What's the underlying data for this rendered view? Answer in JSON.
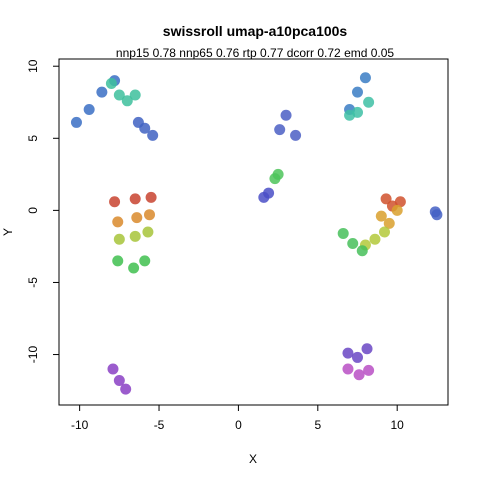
{
  "chart_data": {
    "type": "scatter",
    "title": "swissroll umap-a10pca100s",
    "subtitle": "nnp15 0.78 nnp65 0.76 rtp 0.77 dcorr 0.72 emd 0.05",
    "xlabel": "X",
    "ylabel": "Y",
    "xlim": [
      -11.3,
      13.2
    ],
    "ylim": [
      -13.5,
      10.5
    ],
    "xticks": [
      -10,
      -5,
      0,
      5,
      10
    ],
    "yticks": [
      10,
      5,
      0,
      -5,
      -10
    ],
    "xtick_labels": [
      "-10",
      "-5",
      "0",
      "5",
      "10"
    ],
    "ytick_labels": [
      "10",
      "5",
      "0",
      "-5",
      "-10"
    ],
    "grid": false,
    "legend": "none",
    "color_scale": "rainbow (red→yellow→green→blue→purple)",
    "clusters": [
      {
        "name": "",
        "x": [
          -10.2,
          -9.4,
          -8.6,
          -7.8
        ],
        "y": [
          6.1,
          7.0,
          8.2,
          9.0
        ],
        "color": "#3a6fc4"
      },
      {
        "name": "",
        "x": [
          -8.0,
          -7.5,
          -7.0,
          -6.5
        ],
        "y": [
          8.8,
          8.0,
          7.6,
          8.0
        ],
        "color": "#3dbf9c"
      },
      {
        "name": "",
        "x": [
          -6.3,
          -5.9,
          -5.4
        ],
        "y": [
          6.1,
          5.7,
          5.2
        ],
        "color": "#4061c2"
      },
      {
        "name": "",
        "x": [
          -7.8,
          -6.5,
          -5.5
        ],
        "y": [
          0.6,
          0.8,
          0.9
        ],
        "color": "#c8432f"
      },
      {
        "name": "",
        "x": [
          -7.6,
          -6.4,
          -5.6
        ],
        "y": [
          -0.8,
          -0.5,
          -0.3
        ],
        "color": "#d98a2b"
      },
      {
        "name": "",
        "x": [
          -7.5,
          -6.5,
          -5.7
        ],
        "y": [
          -2.0,
          -1.8,
          -1.5
        ],
        "color": "#a7c43a"
      },
      {
        "name": "",
        "x": [
          -7.6,
          -6.6,
          -5.9
        ],
        "y": [
          -3.5,
          -4.0,
          -3.5
        ],
        "color": "#3fbf4f"
      },
      {
        "name": "",
        "x": [
          -7.9,
          -7.5,
          -7.1
        ],
        "y": [
          -11.0,
          -11.8,
          -12.4
        ],
        "color": "#8a3fc4"
      },
      {
        "name": "",
        "x": [
          1.6,
          1.9
        ],
        "y": [
          0.9,
          1.2
        ],
        "color": "#4a4fc7"
      },
      {
        "name": "",
        "x": [
          2.3,
          2.5
        ],
        "y": [
          2.2,
          2.5
        ],
        "color": "#4ec45b"
      },
      {
        "name": "",
        "x": [
          2.6,
          3.0,
          3.6
        ],
        "y": [
          5.6,
          6.6,
          5.2
        ],
        "color": "#4b5fc4"
      },
      {
        "name": "",
        "x": [
          7.0,
          7.5,
          8.0
        ],
        "y": [
          7.0,
          8.2,
          9.2
        ],
        "color": "#3a7dc4"
      },
      {
        "name": "",
        "x": [
          7.0,
          7.5,
          8.2
        ],
        "y": [
          6.6,
          6.8,
          7.5
        ],
        "color": "#3ec0a4"
      },
      {
        "name": "",
        "x": [
          9.3,
          9.7,
          10.2
        ],
        "y": [
          0.8,
          0.3,
          0.6
        ],
        "color": "#d0512d"
      },
      {
        "name": "",
        "x": [
          9.0,
          9.5,
          10.0
        ],
        "y": [
          -0.4,
          -0.9,
          0.0
        ],
        "color": "#d9a02d"
      },
      {
        "name": "",
        "x": [
          8.0,
          8.6,
          9.2
        ],
        "y": [
          -2.4,
          -2.0,
          -1.5
        ],
        "color": "#b3c93a"
      },
      {
        "name": "",
        "x": [
          6.6,
          7.2,
          7.8
        ],
        "y": [
          -1.6,
          -2.3,
          -2.8
        ],
        "color": "#47c05a"
      },
      {
        "name": "",
        "x": [
          12.4,
          12.5
        ],
        "y": [
          -0.1,
          -0.3
        ],
        "color": "#4460c4"
      },
      {
        "name": "",
        "x": [
          6.9,
          7.5,
          8.1
        ],
        "y": [
          -9.9,
          -10.2,
          -9.6
        ],
        "color": "#6a47c4"
      },
      {
        "name": "",
        "x": [
          6.9,
          7.6,
          8.2
        ],
        "y": [
          -11.0,
          -11.4,
          -11.1
        ],
        "color": "#b84fc4"
      }
    ]
  }
}
